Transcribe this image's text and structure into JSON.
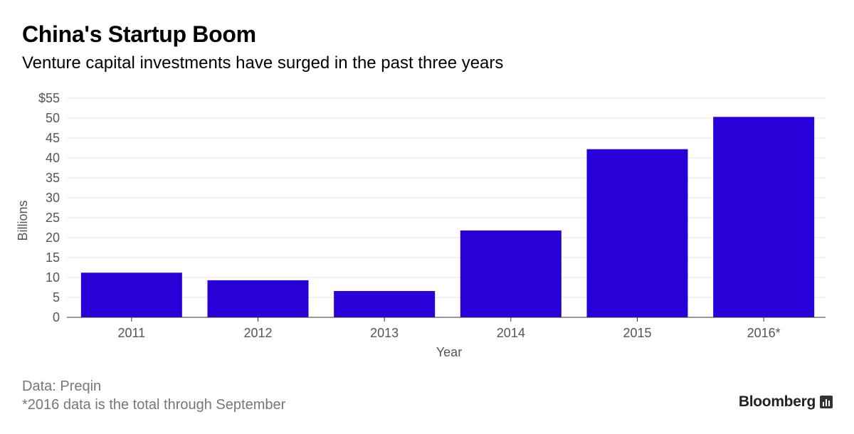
{
  "header": {
    "title": "China's Startup Boom",
    "subtitle": "Venture capital investments have surged in the past three years"
  },
  "chart_data": {
    "type": "bar",
    "title": "China's Startup Boom",
    "subtitle": "Venture capital investments have surged in the past three years",
    "categories": [
      "2011",
      "2012",
      "2013",
      "2014",
      "2015",
      "2016*"
    ],
    "values": [
      11.2,
      9.3,
      6.6,
      21.8,
      42.2,
      50.3
    ],
    "xlabel": "Year",
    "ylabel": "Billions",
    "ylim": [
      0,
      55
    ],
    "yticks": [
      0,
      5,
      10,
      15,
      20,
      25,
      30,
      35,
      40,
      45,
      50,
      55
    ],
    "ytick_labels": [
      "0",
      "5",
      "10",
      "15",
      "20",
      "25",
      "30",
      "35",
      "40",
      "45",
      "50",
      "$55"
    ],
    "grid": true,
    "bar_color": "#2a00d9"
  },
  "footer": {
    "source": "Data: Preqin",
    "note": "*2016 data is the total through September",
    "brand": "Bloomberg"
  }
}
